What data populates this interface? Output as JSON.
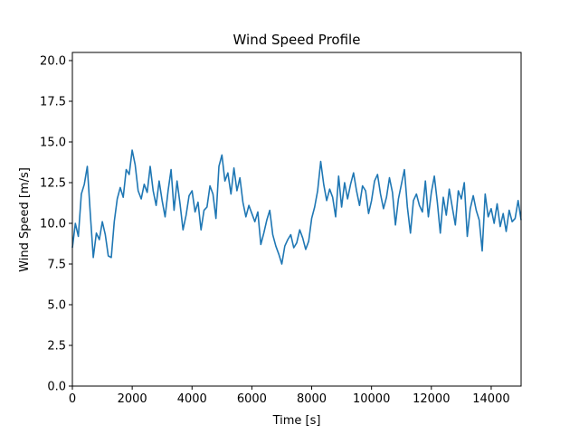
{
  "chart_data": {
    "type": "line",
    "title": "Wind Speed Profile",
    "xlabel": "Time [s]",
    "ylabel": "Wind Speed [m/s]",
    "xlim": [
      0,
      15000
    ],
    "ylim": [
      0,
      20.5
    ],
    "grid": false,
    "legend": "none",
    "line_color": "#1f77b4",
    "x_ticks": [
      0,
      2000,
      4000,
      6000,
      8000,
      10000,
      12000,
      14000
    ],
    "x_tick_labels": [
      "0",
      "2000",
      "4000",
      "6000",
      "8000",
      "10000",
      "12000",
      "14000"
    ],
    "y_ticks": [
      0,
      2.5,
      5,
      7.5,
      10,
      12.5,
      15,
      17.5,
      20
    ],
    "y_tick_labels": [
      "0.0",
      "2.5",
      "5.0",
      "7.5",
      "10.0",
      "12.5",
      "15.0",
      "17.5",
      "20.0"
    ],
    "series": [
      {
        "x": [
          0,
          100,
          200,
          300,
          400,
          500,
          600,
          700,
          800,
          900,
          1000,
          1100,
          1200,
          1300,
          1400,
          1500,
          1600,
          1700,
          1800,
          1900,
          2000,
          2100,
          2200,
          2300,
          2400,
          2500,
          2600,
          2700,
          2800,
          2900,
          3000,
          3100,
          3200,
          3300,
          3400,
          3500,
          3600,
          3700,
          3800,
          3900,
          4000,
          4100,
          4200,
          4300,
          4400,
          4500,
          4600,
          4700,
          4800,
          4900,
          5000,
          5100,
          5200,
          5300,
          5400,
          5500,
          5600,
          5700,
          5800,
          5900,
          6000,
          6100,
          6200,
          6300,
          6400,
          6500,
          6600,
          6700,
          6800,
          6900,
          7000,
          7100,
          7200,
          7300,
          7400,
          7500,
          7600,
          7700,
          7800,
          7900,
          8000,
          8100,
          8200,
          8300,
          8400,
          8500,
          8600,
          8700,
          8800,
          8900,
          9000,
          9100,
          9200,
          9300,
          9400,
          9500,
          9600,
          9700,
          9800,
          9900,
          10000,
          10100,
          10200,
          10300,
          10400,
          10500,
          10600,
          10700,
          10800,
          10900,
          11000,
          11100,
          11200,
          11300,
          11400,
          11500,
          11600,
          11700,
          11800,
          11900,
          12000,
          12100,
          12200,
          12300,
          12400,
          12500,
          12600,
          12700,
          12800,
          12900,
          13000,
          13100,
          13200,
          13300,
          13400,
          13500,
          13600,
          13700,
          13800,
          13900,
          14000,
          14100,
          14200,
          14300,
          14400,
          14500,
          14600,
          14700,
          14800,
          14900,
          15000
        ],
        "y": [
          8.5,
          10.0,
          9.2,
          11.8,
          12.4,
          13.5,
          10.6,
          7.9,
          9.4,
          9.0,
          10.1,
          9.3,
          8.0,
          7.9,
          10.1,
          11.5,
          12.2,
          11.6,
          13.3,
          13.0,
          14.5,
          13.6,
          12.0,
          11.5,
          12.4,
          11.9,
          13.5,
          12.0,
          11.1,
          12.6,
          11.4,
          10.4,
          12.0,
          13.3,
          10.8,
          12.6,
          11.2,
          9.6,
          10.5,
          11.7,
          12.0,
          10.7,
          11.3,
          9.6,
          10.8,
          11.0,
          12.3,
          11.8,
          10.3,
          13.5,
          14.2,
          12.6,
          13.1,
          11.8,
          13.4,
          12.0,
          12.8,
          11.3,
          10.4,
          11.1,
          10.6,
          10.1,
          10.7,
          8.7,
          9.4,
          10.2,
          10.8,
          9.3,
          8.6,
          8.1,
          7.5,
          8.6,
          9.0,
          9.3,
          8.5,
          8.8,
          9.6,
          9.1,
          8.4,
          8.9,
          10.3,
          11.0,
          12.0,
          13.8,
          12.4,
          11.4,
          12.1,
          11.6,
          10.4,
          12.9,
          11.0,
          12.5,
          11.5,
          12.4,
          13.1,
          12.0,
          11.1,
          12.3,
          12.0,
          10.6,
          11.4,
          12.6,
          13.0,
          11.8,
          10.9,
          11.6,
          12.8,
          11.9,
          9.9,
          11.5,
          12.4,
          13.3,
          11.0,
          9.4,
          11.4,
          11.8,
          11.1,
          10.7,
          12.6,
          10.4,
          11.9,
          12.9,
          11.3,
          9.4,
          11.6,
          10.5,
          12.1,
          11.0,
          9.9,
          12.0,
          11.5,
          12.5,
          9.2,
          10.9,
          11.7,
          10.8,
          10.2,
          8.3,
          11.8,
          10.4,
          10.9,
          10.0,
          11.2,
          9.8,
          10.6,
          9.5,
          10.8,
          10.1,
          10.3,
          11.4,
          10.2
        ]
      }
    ]
  }
}
